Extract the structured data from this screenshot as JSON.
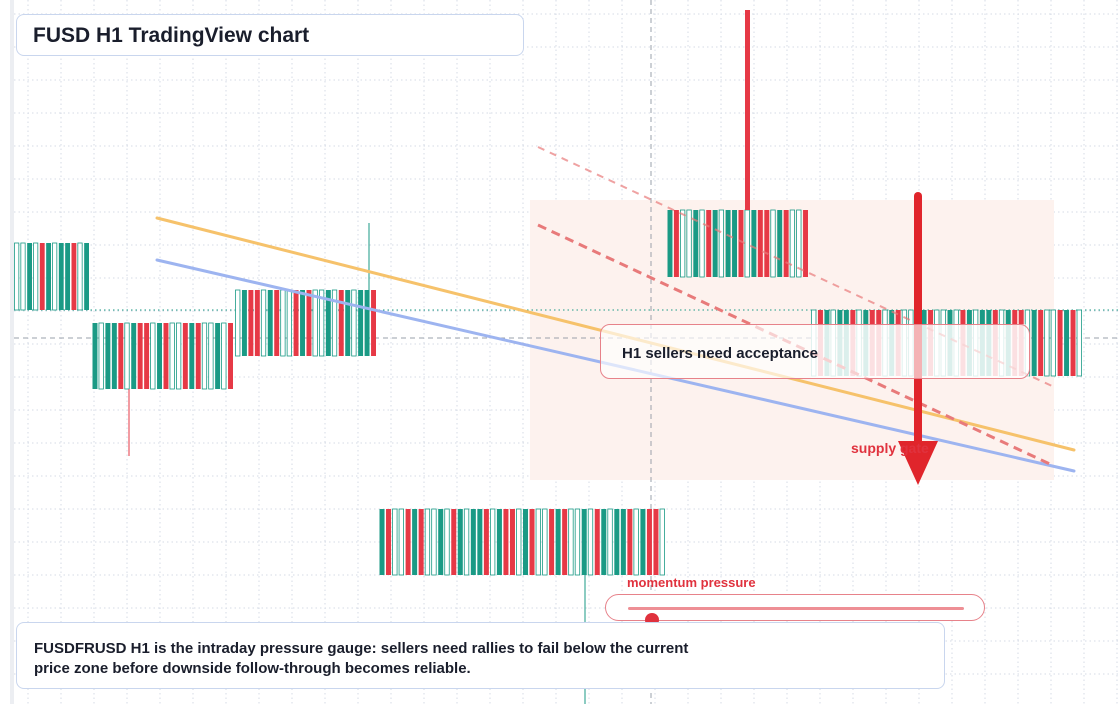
{
  "title": "FUSD H1 TradingView chart",
  "colors": {
    "bull": "#1a9a85",
    "bear": "#e63946",
    "ma_fast": "#f6c26b",
    "ma_slow": "#9db4f0",
    "trend": "#e87a7a",
    "grid": "#d6dbe6",
    "zone": "#fdf2ee"
  },
  "annotation": {
    "text": "H1 sellers need acceptance"
  },
  "supply_label": "supply gate",
  "momentum": {
    "label": "momentum pressure",
    "level": 0.07
  },
  "footer": {
    "line1": "FUSDFRUSD H1 is the intraday pressure gauge: sellers need rallies to fail below the current",
    "line2": "price zone before downside follow-through becomes reliable."
  },
  "chart_data": {
    "type": "candlestick",
    "timeframe": "H1",
    "candle_blocks": [
      {
        "open": 0.7,
        "close": 0.3,
        "high": 0.7,
        "low": 0.3
      },
      {
        "open": 0.3,
        "close": 0.7,
        "high": 0.7,
        "low": -0.2
      },
      {
        "open": 0.25,
        "close": 0.8,
        "high": 1.2,
        "low": 0.25
      },
      {
        "open": 0.8,
        "close": 0.25,
        "high": 0.8,
        "low": 0.25
      },
      {
        "open": 0.3,
        "close": 0.7,
        "high": 0.7,
        "low": -0.3
      },
      {
        "open": 0.25,
        "close": 0.75,
        "high": 3.8,
        "low": 0.25
      },
      {
        "open": 0.35,
        "close": 0.65,
        "high": 0.65,
        "low": 0.35
      }
    ],
    "moving_averages": [
      "orange",
      "blue"
    ],
    "trendlines": 2,
    "zone": "supply"
  }
}
